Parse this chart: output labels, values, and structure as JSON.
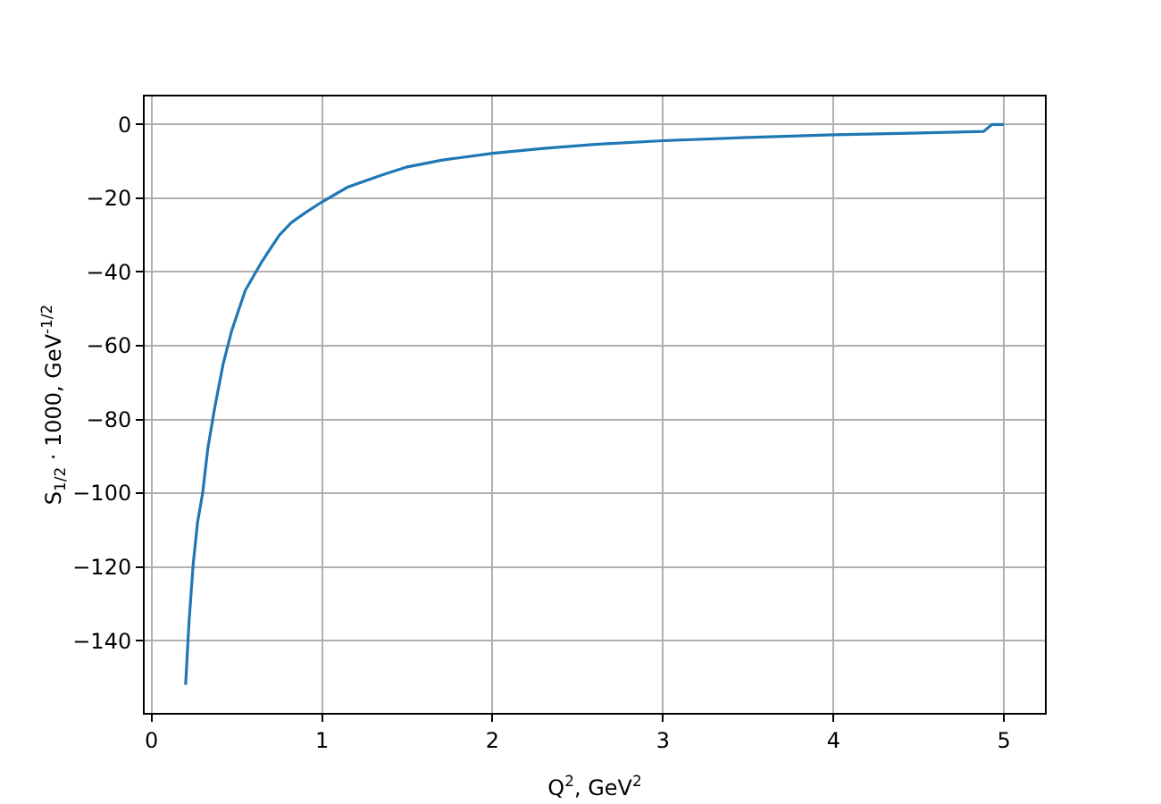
{
  "chart_data": {
    "type": "line",
    "xlabel": "Q$^{2}$, GeV$^{2}$",
    "ylabel": "S$_{1/2}$ · 1000, GeV$^{-1/2}$",
    "x": [
      0.2,
      0.22,
      0.245,
      0.27,
      0.3,
      0.33,
      0.37,
      0.42,
      0.47,
      0.55,
      0.65,
      0.75,
      0.82,
      0.9,
      1.0,
      1.15,
      1.35,
      1.5,
      1.7,
      2.0,
      2.3,
      2.6,
      3.0,
      3.5,
      4.0,
      4.5,
      4.88,
      4.93,
      5.0
    ],
    "series": [
      {
        "color": "#1f77b4",
        "values": [
          -152,
          -135,
          -119,
          -108,
          -100,
          -88,
          -77,
          -65,
          -56,
          -45,
          -37,
          -30,
          -26.6,
          -24,
          -21,
          -17,
          -13.7,
          -11.5,
          -9.7,
          -7.8,
          -6.5,
          -5.4,
          -4.4,
          -3.5,
          -2.8,
          -2.3,
          -1.9,
          0,
          0
        ]
      }
    ],
    "xlim": [
      -0.04,
      5.24
    ],
    "ylim": [
      -159.6,
      7.6
    ],
    "xticks": [
      0,
      1,
      2,
      3,
      4,
      5
    ],
    "yticks": [
      -140,
      -120,
      -100,
      -80,
      -60,
      -40,
      -20,
      0
    ],
    "grid": true,
    "line_style": "solid"
  }
}
